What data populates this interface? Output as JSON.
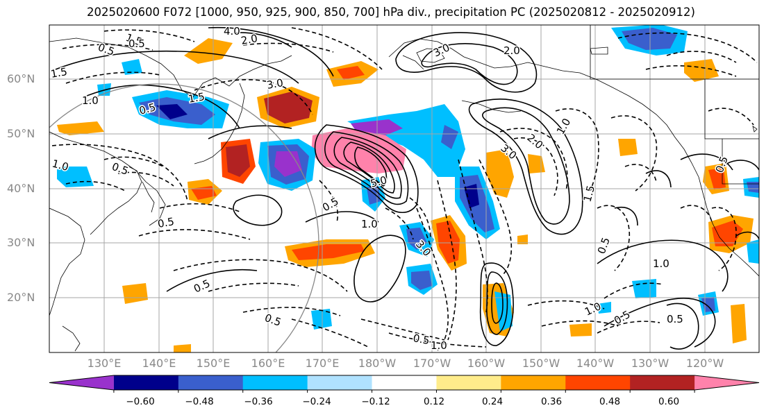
{
  "title": "2025020600 F072 [1000, 950, 925, 900, 850, 700] hPa div., precipitation PC (2025020812 - 2025020912)",
  "lat_labels": [
    "60°N",
    "50°N",
    "40°N",
    "30°N",
    "20°N"
  ],
  "lon_labels": [
    "130°E",
    "140°E",
    "150°E",
    "160°E",
    "170°E",
    "180°W",
    "170°W",
    "160°W",
    "150°W",
    "140°W",
    "130°W",
    "120°W"
  ],
  "colorbar": {
    "colors": [
      "#9932cc",
      "#00008b",
      "#3a5fcd",
      "#00bfff",
      "#b0e2ff",
      "#ffffff",
      "#ffec8b",
      "#ffa500",
      "#ff4500",
      "#b22222",
      "#ff82ab"
    ],
    "ticks": [
      "−0.60",
      "−0.48",
      "−0.36",
      "−0.24",
      "−0.12",
      "0.12",
      "0.24",
      "0.36",
      "0.48",
      "0.60"
    ]
  },
  "contour_labels": [
    "1.5",
    "0.5",
    "4.0",
    "2.0",
    "3.0",
    "1.0",
    "0.5",
    "1.5",
    "3.0",
    "2.0",
    "1.5",
    "0.5",
    "1.0",
    "0.5",
    "5.0",
    "3.0",
    "0.5",
    "1.0",
    "2.0",
    "3.0",
    "1.0",
    "1.5",
    "0.5",
    "0.5",
    "1.0",
    "0.5",
    "0.5",
    "0.5",
    "1.0",
    "0.5",
    "0.5",
    "1.0",
    "0.5"
  ]
}
